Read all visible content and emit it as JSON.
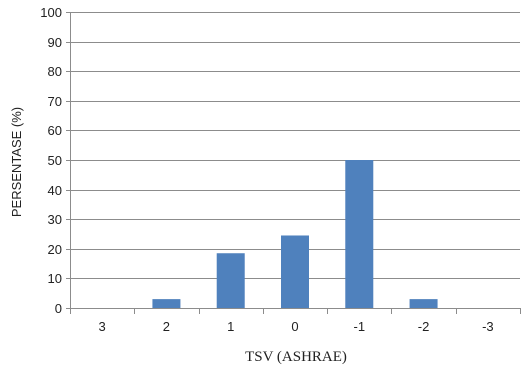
{
  "chart_data": {
    "type": "bar",
    "categories": [
      "3",
      "2",
      "1",
      "0",
      "-1",
      "-2",
      "-3"
    ],
    "values": [
      0,
      3,
      18.5,
      24.5,
      50,
      3,
      0
    ],
    "title": "",
    "xlabel": "TSV (ASHRAE)",
    "ylabel": "PERSENTASE (%)",
    "ylim": [
      0,
      100
    ],
    "yticks": [
      "0",
      "10",
      "20",
      "30",
      "40",
      "50",
      "60",
      "70",
      "80",
      "90",
      "100"
    ],
    "grid": true,
    "legend": "none",
    "colors": {
      "bar": "#4f81bd",
      "grid": "#8c8c8c",
      "axis": "#8c8c8c"
    }
  }
}
